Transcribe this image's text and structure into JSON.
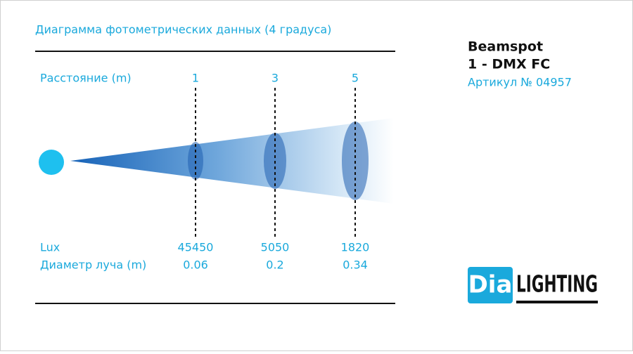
{
  "header": {
    "title": "Диаграмма фотометрических данных (4 градуса)"
  },
  "product": {
    "name": "Beamspot",
    "model": "1 - DMX FC",
    "article": "Артикул № 04957"
  },
  "distance": {
    "label": "Расстояние (m)",
    "values": [
      "1",
      "3",
      "5"
    ]
  },
  "lux": {
    "label": "Lux",
    "values": [
      "45450",
      "5050",
      "1820"
    ]
  },
  "diameter": {
    "label": "Диаметр луча (m)",
    "values": [
      "0.06",
      "0.2",
      "0.34"
    ]
  },
  "logo": {
    "prefix": "Dia",
    "suffix": "LIGHTING"
  }
}
